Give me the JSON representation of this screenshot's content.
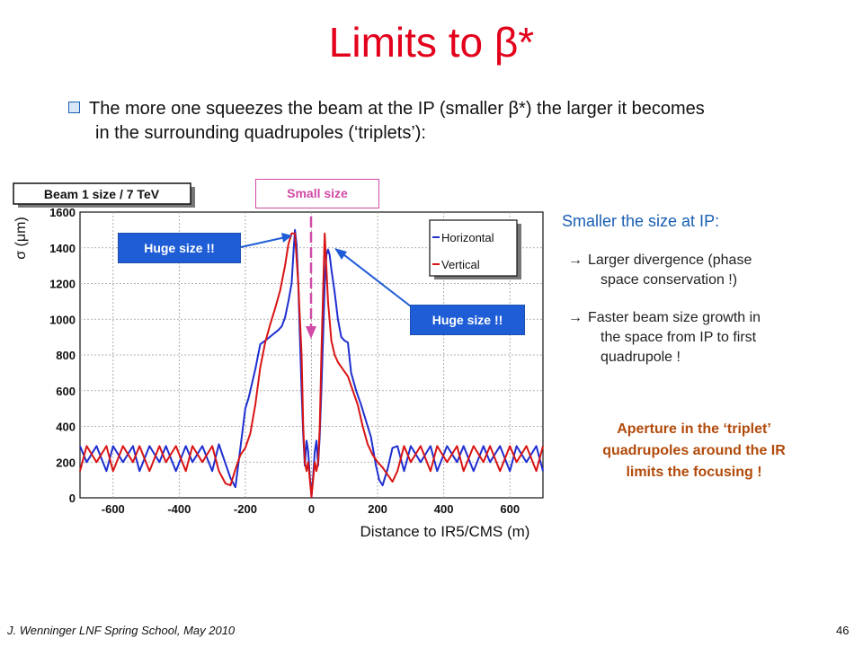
{
  "slide": {
    "title": "Limits to β*",
    "bullet_line1": "The more one squeezes the beam at the IP (smaller β*) the larger it becomes",
    "bullet_line2": "in the surrounding quadrupoles (‘triplets’):",
    "callouts": {
      "small_size": "Small size",
      "huge_left": "Huge size !!",
      "huge_right": "Huge size !!"
    },
    "side": {
      "heading": "Smaller the size at IP:",
      "arrow": "→",
      "item1_line1": "Larger divergence (phase",
      "item1_line2": "space conservation !)",
      "item2_line1": "Faster beam size growth in",
      "item2_line2": "the space from IP to first",
      "item2_line3": "quadrupole !",
      "note_line1": "Aperture in the ‘triplet’",
      "note_line2": "quadrupoles around the IR",
      "note_line3": "limits the focusing !"
    },
    "footer": {
      "author": "J. Wenninger LNF Spring School, May 2010",
      "page": "46"
    }
  },
  "colors": {
    "title": "#e3001b",
    "horizontal": "#1f2fd0",
    "vertical": "#d91414",
    "callout_blue": "#1f5dd6",
    "small_size": "#d24aa7",
    "note": "#b24a0a"
  },
  "chart_data": {
    "type": "line",
    "title": "Beam 1 size / 7 TeV",
    "xlabel": "Distance to IR5/CMS (m)",
    "ylabel": "σ (μm)",
    "xlim": [
      -700,
      700
    ],
    "ylim": [
      0,
      1600
    ],
    "xticks": [
      -600,
      -400,
      -200,
      0,
      200,
      400,
      600
    ],
    "yticks": [
      0,
      200,
      400,
      600,
      800,
      1000,
      1200,
      1400,
      1600
    ],
    "grid": true,
    "legend_position": "top-right",
    "series": [
      {
        "name": "Horizontal",
        "color": "#1f2fd0",
        "x": [
          -700,
          -680,
          -650,
          -620,
          -600,
          -570,
          -540,
          -520,
          -490,
          -460,
          -440,
          -410,
          -380,
          -360,
          -330,
          -300,
          -280,
          -260,
          -245,
          -230,
          -215,
          -200,
          -190,
          -180,
          -170,
          -155,
          -140,
          -120,
          -100,
          -90,
          -80,
          -70,
          -60,
          -55,
          -50,
          -45,
          -40,
          -35,
          -30,
          -25,
          -20,
          -15,
          -10,
          -5,
          0,
          5,
          10,
          15,
          20,
          25,
          30,
          35,
          40,
          45,
          50,
          55,
          60,
          70,
          80,
          90,
          100,
          110,
          120,
          135,
          150,
          165,
          180,
          195,
          205,
          215,
          230,
          245,
          260,
          280,
          300,
          330,
          360,
          380,
          410,
          440,
          460,
          490,
          520,
          540,
          570,
          600,
          620,
          650,
          680,
          700
        ],
        "y": [
          290,
          200,
          290,
          150,
          290,
          200,
          290,
          150,
          290,
          200,
          290,
          150,
          290,
          200,
          290,
          150,
          300,
          190,
          110,
          60,
          280,
          500,
          560,
          640,
          720,
          860,
          880,
          910,
          940,
          960,
          1010,
          1100,
          1200,
          1360,
          1500,
          1420,
          1200,
          900,
          600,
          350,
          180,
          320,
          260,
          120,
          10,
          120,
          260,
          320,
          180,
          350,
          600,
          900,
          1200,
          1360,
          1390,
          1360,
          1280,
          1150,
          1000,
          900,
          880,
          870,
          700,
          600,
          520,
          430,
          340,
          180,
          100,
          70,
          160,
          280,
          290,
          150,
          290,
          200,
          290,
          150,
          290,
          200,
          290,
          150,
          290,
          200,
          290,
          150,
          290,
          200,
          290,
          150
        ]
      },
      {
        "name": "Vertical",
        "color": "#d91414",
        "x": [
          -700,
          -680,
          -650,
          -620,
          -600,
          -570,
          -540,
          -520,
          -490,
          -460,
          -440,
          -410,
          -380,
          -360,
          -330,
          -300,
          -280,
          -260,
          -245,
          -230,
          -215,
          -200,
          -185,
          -170,
          -155,
          -140,
          -125,
          -110,
          -95,
          -80,
          -70,
          -60,
          -50,
          -40,
          -30,
          -25,
          -20,
          -15,
          -10,
          -5,
          0,
          5,
          10,
          15,
          20,
          25,
          30,
          40,
          50,
          60,
          70,
          80,
          95,
          110,
          125,
          140,
          155,
          170,
          185,
          200,
          215,
          230,
          245,
          260,
          280,
          300,
          330,
          360,
          380,
          410,
          440,
          460,
          490,
          520,
          540,
          570,
          600,
          620,
          650,
          680,
          700
        ],
        "y": [
          150,
          290,
          200,
          290,
          150,
          290,
          200,
          290,
          150,
          290,
          200,
          290,
          150,
          290,
          200,
          290,
          150,
          80,
          70,
          160,
          240,
          280,
          360,
          520,
          730,
          870,
          970,
          1060,
          1160,
          1300,
          1420,
          1480,
          1480,
          1200,
          800,
          400,
          200,
          150,
          200,
          100,
          5,
          100,
          200,
          150,
          200,
          400,
          800,
          1480,
          1100,
          880,
          800,
          760,
          720,
          680,
          600,
          520,
          400,
          300,
          240,
          200,
          170,
          130,
          90,
          150,
          290,
          200,
          290,
          150,
          290,
          200,
          290,
          150,
          290,
          200,
          290,
          150,
          290,
          200,
          290,
          150,
          290
        ]
      }
    ]
  }
}
